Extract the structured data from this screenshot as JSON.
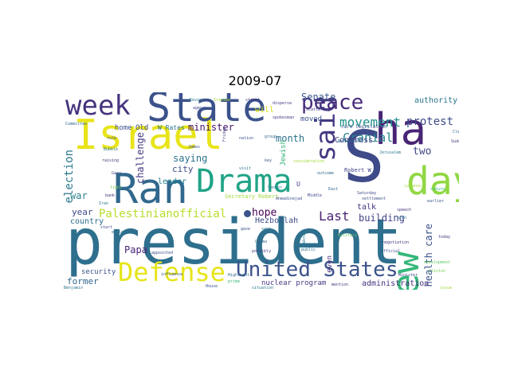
{
  "figure": {
    "title": "2009-07"
  },
  "wordcloud": {
    "words": [
      {
        "text": "president",
        "color": "#2e6f8e"
      },
      {
        "text": "Israel",
        "color": "#e8e419"
      },
      {
        "text": "State",
        "color": "#3b528b"
      },
      {
        "text": "Ran",
        "color": "#31688e"
      },
      {
        "text": "Drama",
        "color": "#20a386"
      },
      {
        "text": "S",
        "color": "#3e4a89"
      },
      {
        "text": "ha",
        "color": "#482475"
      },
      {
        "text": "said",
        "color": "#443a83"
      },
      {
        "text": "day",
        "color": "#90d743"
      },
      {
        "text": "new",
        "color": "#35b779"
      },
      {
        "text": "week",
        "color": "#46337e"
      },
      {
        "text": "peace",
        "color": "#472c7a"
      },
      {
        "text": "Defense",
        "color": "#e5e419"
      },
      {
        "text": "United States",
        "color": "#3b528b"
      },
      {
        "text": "movement",
        "color": "#21918c"
      },
      {
        "text": "Cranial",
        "color": "#25858e"
      },
      {
        "text": "protest",
        "color": "#3e4c8a"
      },
      {
        "text": "Palestinianofficial",
        "color": "#b5de2b"
      },
      {
        "text": "hope",
        "color": "#440154"
      },
      {
        "text": "Last",
        "color": "#482173"
      },
      {
        "text": "Senate",
        "color": "#38588c"
      },
      {
        "text": "health care",
        "color": "#3b528b"
      },
      {
        "text": "election",
        "color": "#2a788e"
      },
      {
        "text": "two",
        "color": "#3f4889"
      },
      {
        "text": "month",
        "color": "#2c728e"
      },
      {
        "text": "building",
        "color": "#414487"
      },
      {
        "text": "administration",
        "color": "#46327e"
      },
      {
        "text": "nuclear program",
        "color": "#443983"
      },
      {
        "text": "Hezbollah",
        "color": "#3d4d8a"
      },
      {
        "text": "Papa",
        "color": "#482475"
      },
      {
        "text": "former",
        "color": "#31688e"
      },
      {
        "text": "security",
        "color": "#3b528b"
      },
      {
        "text": "country",
        "color": "#2f6c8e"
      },
      {
        "text": "year",
        "color": "#3e4989"
      },
      {
        "text": "war",
        "color": "#27808e"
      },
      {
        "text": "leader",
        "color": "#26828e"
      },
      {
        "text": "city",
        "color": "#3e4a89"
      },
      {
        "text": "challenge",
        "color": "#453781"
      },
      {
        "text": "saying",
        "color": "#2c728e"
      },
      {
        "text": "minister",
        "color": "#471365"
      },
      {
        "text": "authority",
        "color": "#2a768e"
      },
      {
        "text": "Congress",
        "color": "#433e85"
      },
      {
        "text": "Jewish",
        "color": "#35b779"
      },
      {
        "text": "moved",
        "color": "#3b528b"
      },
      {
        "text": "will",
        "color": "#d8e219"
      },
      {
        "text": "talk",
        "color": "#46327e"
      },
      {
        "text": "home",
        "color": "#3b528b"
      },
      {
        "text": "Old",
        "color": "#3f4788"
      },
      {
        "text": "W Rates",
        "color": "#2c728e"
      },
      {
        "text": "Robert W",
        "color": "#404588"
      },
      {
        "text": "care legislation",
        "color": "#3b528b"
      },
      {
        "text": "even",
        "color": "#46337e"
      },
      {
        "text": "U",
        "color": "#414487"
      },
      {
        "text": "Secretary Robert",
        "color": "#a0da39"
      },
      {
        "text": "explained",
        "color": "#2c728e"
      },
      {
        "text": "influence",
        "color": "#3b528b"
      },
      {
        "text": "Highlight",
        "color": "#31688e"
      },
      {
        "text": "disperse",
        "color": "#443983"
      },
      {
        "text": "military",
        "color": "#5ec962"
      },
      {
        "text": "Saturday",
        "color": "#3e4989"
      },
      {
        "text": "Clinton",
        "color": "#7ad151"
      },
      {
        "text": "abroad",
        "color": "#2a788e"
      },
      {
        "text": "negotiation",
        "color": "#46327e"
      },
      {
        "text": "official",
        "color": "#3b528b"
      },
      {
        "text": "Netanyahu",
        "color": "#31688e"
      },
      {
        "text": "scattering",
        "color": "#443983"
      },
      {
        "text": "return",
        "color": "#35b779"
      },
      {
        "text": "earlier",
        "color": "#3b528b"
      },
      {
        "text": "consideration",
        "color": "#a0da39"
      },
      {
        "text": "Benjamin",
        "color": "#2c728e"
      },
      {
        "text": "Committee",
        "color": "#31688e"
      },
      {
        "text": "rule",
        "color": "#3e4989"
      },
      {
        "text": "Bubble",
        "color": "#2a788e"
      },
      {
        "text": "raising",
        "color": "#46327e"
      },
      {
        "text": "James",
        "color": "#3b528b"
      },
      {
        "text": "Friday",
        "color": "#443983"
      },
      {
        "text": "control",
        "color": "#2c728e"
      },
      {
        "text": "House",
        "color": "#3b528b"
      },
      {
        "text": "Jerusalem",
        "color": "#2a788e"
      },
      {
        "text": "development",
        "color": "#5ec962"
      },
      {
        "text": "Minister",
        "color": "#3e4989"
      },
      {
        "text": "public",
        "color": "#2c728e"
      },
      {
        "text": "possibly",
        "color": "#443983"
      },
      {
        "text": "appointed",
        "color": "#3b528b"
      },
      {
        "text": "outcome",
        "color": "#31688e"
      },
      {
        "text": "Kevin",
        "color": "#2a788e"
      },
      {
        "text": "Iranian",
        "color": "#a0da39"
      },
      {
        "text": "street",
        "color": "#46327e"
      },
      {
        "text": "key",
        "color": "#3b528b"
      },
      {
        "text": "visit",
        "color": "#2c728e"
      },
      {
        "text": "Gaza",
        "color": "#3e4989"
      },
      {
        "text": "fight",
        "color": "#7ad151"
      },
      {
        "text": "Obama",
        "color": "#31688e"
      },
      {
        "text": "spokesman",
        "color": "#443983"
      },
      {
        "text": "Iran",
        "color": "#2a788e"
      },
      {
        "text": "nation",
        "color": "#3b528b"
      },
      {
        "text": "bank",
        "color": "#46327e"
      },
      {
        "text": "Senior",
        "color": "#2c728e"
      },
      {
        "text": "Middle",
        "color": "#3e4989"
      },
      {
        "text": "East",
        "color": "#31688e"
      },
      {
        "text": "Lebanon",
        "color": "#a0da39"
      },
      {
        "text": "settlement",
        "color": "#3b528b"
      },
      {
        "text": "situation",
        "color": "#2a788e"
      },
      {
        "text": "mention",
        "color": "#443983"
      },
      {
        "text": "plan",
        "color": "#2c728e"
      },
      {
        "text": "speech",
        "color": "#46327e"
      },
      {
        "text": "agency",
        "color": "#3e4989"
      },
      {
        "text": "prime",
        "color": "#35b779"
      },
      {
        "text": "group",
        "color": "#31688e"
      },
      {
        "text": "Ahmadinejad",
        "color": "#3b528b"
      },
      {
        "text": "Clear",
        "color": "#2c728e"
      },
      {
        "text": "Sudan",
        "color": "#443983"
      },
      {
        "text": "issue",
        "color": "#a0da39"
      },
      {
        "text": "gave",
        "color": "#3b528b"
      },
      {
        "text": "sent",
        "color": "#2a788e"
      },
      {
        "text": "today",
        "color": "#46327e"
      },
      {
        "text": "start",
        "color": "#3e4989"
      }
    ]
  }
}
